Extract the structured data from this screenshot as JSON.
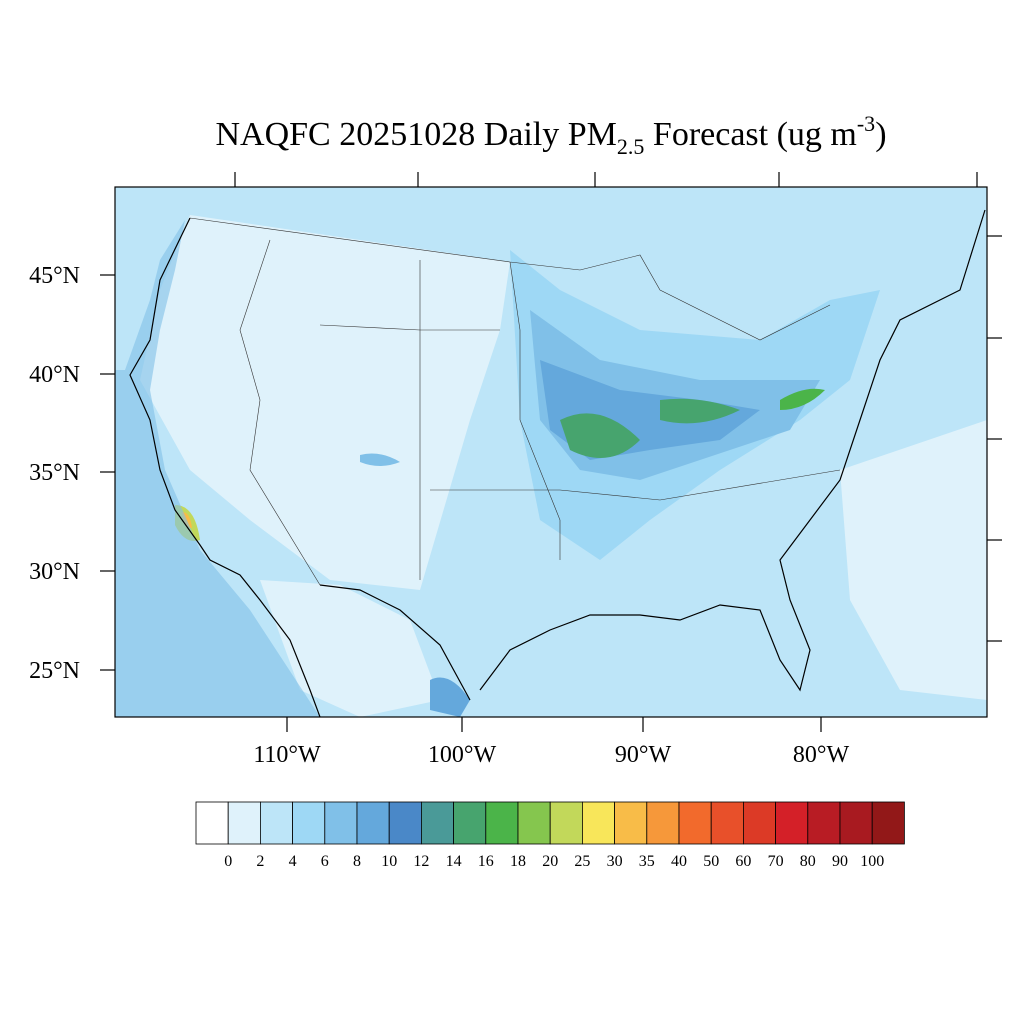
{
  "title": {
    "main": "NAQFC 20251028 Daily PM",
    "subscript": "2.5",
    "middle": " Forecast (ug m",
    "superscript": "-3",
    "end": ")"
  },
  "latitude_labels": [
    "45°N",
    "40°N",
    "35°N",
    "30°N",
    "25°N"
  ],
  "longitude_labels": [
    "110°W",
    "100°W",
    "90°W",
    "80°W"
  ],
  "colorbar": {
    "levels": [
      0,
      2,
      4,
      6,
      8,
      10,
      12,
      14,
      16,
      18,
      20,
      25,
      30,
      35,
      40,
      50,
      60,
      70,
      80,
      90,
      100
    ],
    "colors": [
      "#ffffff",
      "#dff2fb",
      "#bde5f8",
      "#9ed8f5",
      "#80c0e8",
      "#64a8dc",
      "#4a88c8",
      "#4a9a98",
      "#47a46e",
      "#4bb449",
      "#85c64e",
      "#c2d85a",
      "#f8e65a",
      "#f8bc48",
      "#f6983a",
      "#f26a2c",
      "#e8502a",
      "#dc3a26",
      "#d42028",
      "#b81c24",
      "#a81a20",
      "#921818"
    ]
  }
}
